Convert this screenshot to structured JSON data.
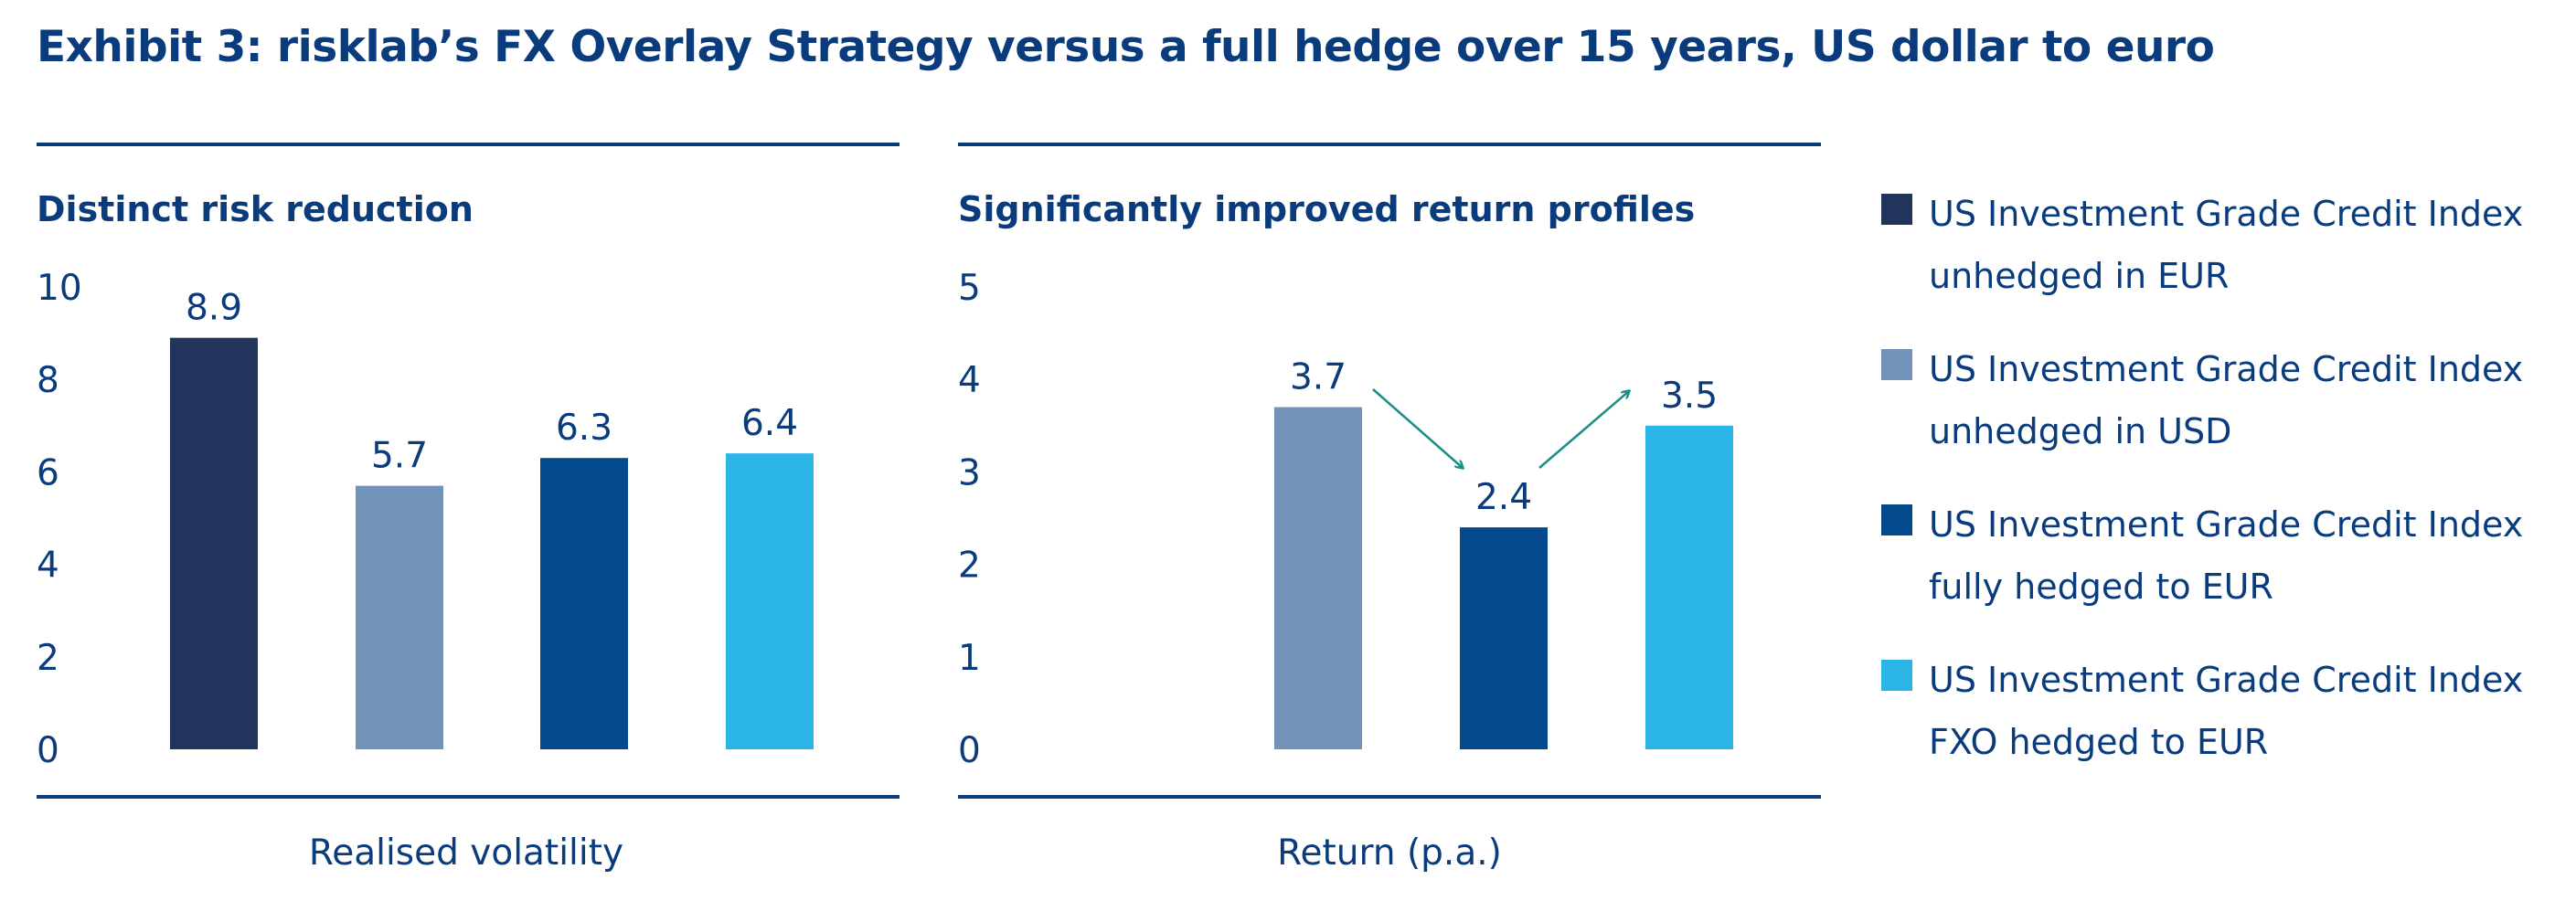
{
  "title": "Exhibit 3: risklab’s FX Overlay Strategy versus a full hedge over 15 years, US dollar to euro",
  "legend": [
    {
      "line1": "US Investment Grade Credit Index",
      "line2": "unhedged in EUR",
      "color": "#22345c"
    },
    {
      "line1": "US Investment Grade Credit Index",
      "line2": "unhedged in USD",
      "color": "#7193b8"
    },
    {
      "line1": "US Investment Grade Credit Index",
      "line2": "fully hedged to EUR",
      "color": "#034a8c"
    },
    {
      "line1": "US Investment Grade Credit Index",
      "line2": "FXO hedged to EUR",
      "color": "#2bb5e6"
    }
  ],
  "chart_data": [
    {
      "type": "bar",
      "title": "Distinct risk reduction",
      "xlabel": "Realised volatility",
      "ylabel": "",
      "ylim": [
        0,
        10
      ],
      "yticks": [
        "0",
        "2",
        "4",
        "6",
        "8",
        "10"
      ],
      "series": [
        {
          "name": "US Investment Grade Credit Index unhedged in EUR",
          "value": 8.9,
          "label": "8.9"
        },
        {
          "name": "US Investment Grade Credit Index unhedged in USD",
          "value": 5.7,
          "label": "5.7"
        },
        {
          "name": "US Investment Grade Credit Index fully hedged to EUR",
          "value": 6.3,
          "label": "6.3"
        },
        {
          "name": "US Investment Grade Credit Index FXO hedged to EUR",
          "value": 6.4,
          "label": "6.4"
        }
      ]
    },
    {
      "type": "bar",
      "title": "Significantly improved return profiles",
      "xlabel": "Return (p.a.)",
      "ylabel": "",
      "ylim": [
        0,
        5
      ],
      "yticks": [
        "0",
        "1",
        "2",
        "3",
        "4",
        "5"
      ],
      "series": [
        {
          "name": "US Investment Grade Credit Index unhedged in USD",
          "value": 3.7,
          "label": "3.7"
        },
        {
          "name": "US Investment Grade Credit Index fully hedged to EUR",
          "value": 2.4,
          "label": "2.4"
        },
        {
          "name": "US Investment Grade Credit Index FXO hedged to EUR",
          "value": 3.5,
          "label": "3.5"
        }
      ],
      "arrow_color": "#1a8f86"
    }
  ]
}
